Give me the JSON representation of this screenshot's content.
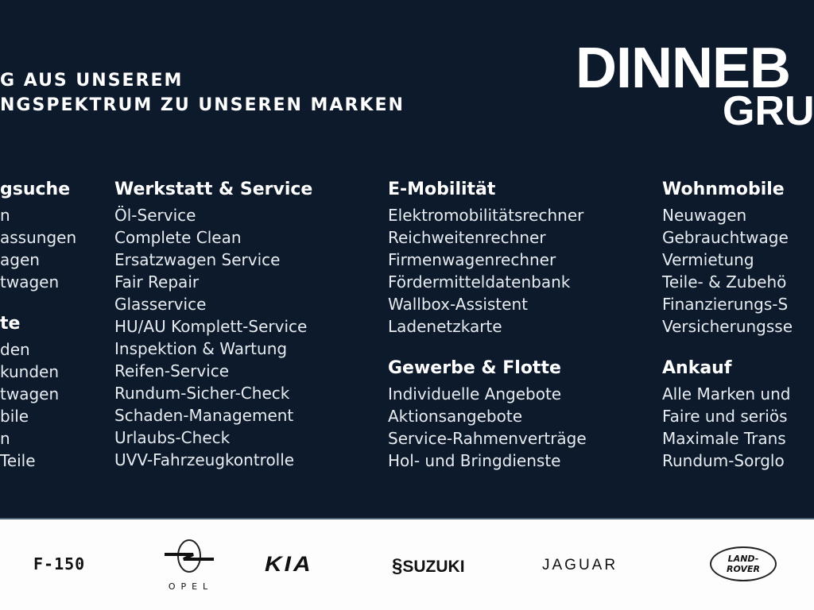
{
  "headline": {
    "line1": "G AUS UNSEREM",
    "line2": "NGSPEKTRUM ZU UNSEREN MARKEN"
  },
  "brand": {
    "line1": "DINNEB",
    "line2": "GRU"
  },
  "columns": [
    {
      "sections": [
        {
          "heading": "gsuche",
          "items": [
            "n",
            "assungen",
            "agen",
            "twagen"
          ]
        },
        {
          "heading": "te",
          "items": [
            "den",
            "kunden",
            "twagen",
            "bile",
            "n",
            "Teile"
          ]
        }
      ]
    },
    {
      "sections": [
        {
          "heading": "Werkstatt & Service",
          "items": [
            "Öl-Service",
            "Complete Clean",
            "Ersatzwagen Service",
            "Fair Repair",
            "Glasservice",
            "HU/AU Komplett-Service",
            "Inspektion & Wartung",
            "Reifen-Service",
            "Rundum-Sicher-Check",
            "Schaden-Management",
            "Urlaubs-Check",
            "UVV-Fahrzeugkontrolle"
          ]
        }
      ]
    },
    {
      "sections": [
        {
          "heading": "E-Mobilität",
          "items": [
            "Elektromobilitätsrechner",
            "Reichweitenrechner",
            "Firmenwagenrechner",
            "Fördermitteldatenbank",
            "Wallbox-Assistent",
            "Ladenetzkarte"
          ]
        },
        {
          "heading": "Gewerbe & Flotte",
          "items": [
            "Individuelle Angebote",
            "Aktionsangebote",
            "Service-Rahmenverträge",
            "Hol- und Bringdienste"
          ]
        }
      ]
    },
    {
      "sections": [
        {
          "heading": "Wohnmobile",
          "items": [
            "Neuwagen",
            "Gebrauchtwage",
            "Vermietung",
            "Teile- & Zubehö",
            "Finanzierungs-S",
            "Versicherungsse"
          ]
        },
        {
          "heading": "Ankauf",
          "items": [
            "Alle Marken und",
            "Faire und seriös",
            "Maximale Trans",
            "Rundum-Sorglo"
          ]
        }
      ]
    }
  ],
  "logos": {
    "f150": "F-150",
    "opel": "OPEL",
    "kia": "KIA",
    "suzuki": "SUZUKI",
    "jaguar": "JAGUAR",
    "landrover_1": "LAND-",
    "landrover_2": "ROVER"
  },
  "colors": {
    "background": "#0c1a2b",
    "text": "#ffffff",
    "strip": "#fdfdfd"
  }
}
